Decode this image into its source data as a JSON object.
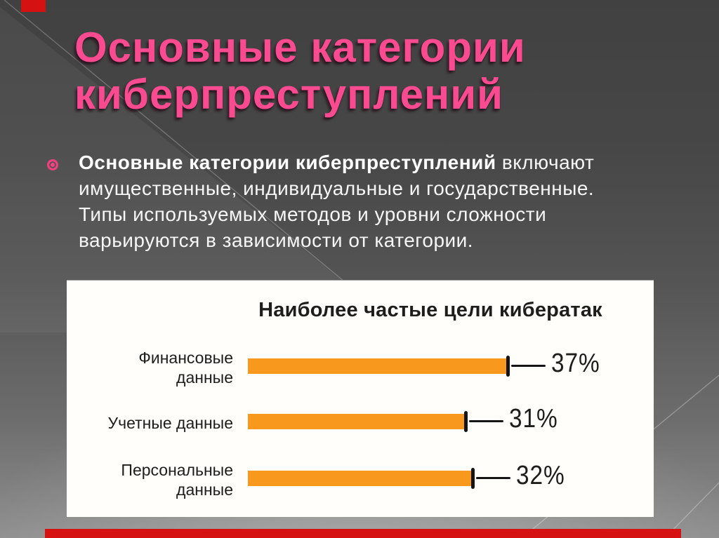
{
  "title": {
    "line1": "Основные категории",
    "line2": "киберпреступлений"
  },
  "body": {
    "lines": [
      {
        "bold": "Основные категории киберпреступлений",
        "rest": " включают"
      },
      {
        "bold": "",
        "rest": "имущественные, индивидуальные и государственные."
      },
      {
        "bold": "",
        "rest": "Типы используемых методов и уровни сложности"
      },
      {
        "bold": "",
        "rest": "варьируются в зависимости от категории."
      }
    ]
  },
  "chart_data": {
    "type": "bar",
    "orientation": "horizontal",
    "title": "Наиболее частые цели кибератак",
    "categories": [
      "Финансовые данные",
      "Учетные данные",
      "Персональные данные"
    ],
    "label_lines": [
      [
        "Финансовые",
        "данные"
      ],
      [
        "Учетные данные"
      ],
      [
        "Персональные",
        "данные"
      ]
    ],
    "values": [
      37,
      31,
      32
    ],
    "unit": "%",
    "value_labels": [
      "37%",
      "31%",
      "32%"
    ],
    "xlim": [
      0,
      100
    ],
    "grid": false,
    "legend": false,
    "bar_color": "#f8981d"
  },
  "colors": {
    "title_pink": "#fb4b90",
    "bar_orange": "#f8981d",
    "accent_red": "#d61111",
    "background_top": "#414141",
    "background_bottom": "#8e8e8e",
    "panel_white": "#fffefb",
    "chart_text": "#1d1d1b",
    "body_text": "#f6f6f6"
  }
}
